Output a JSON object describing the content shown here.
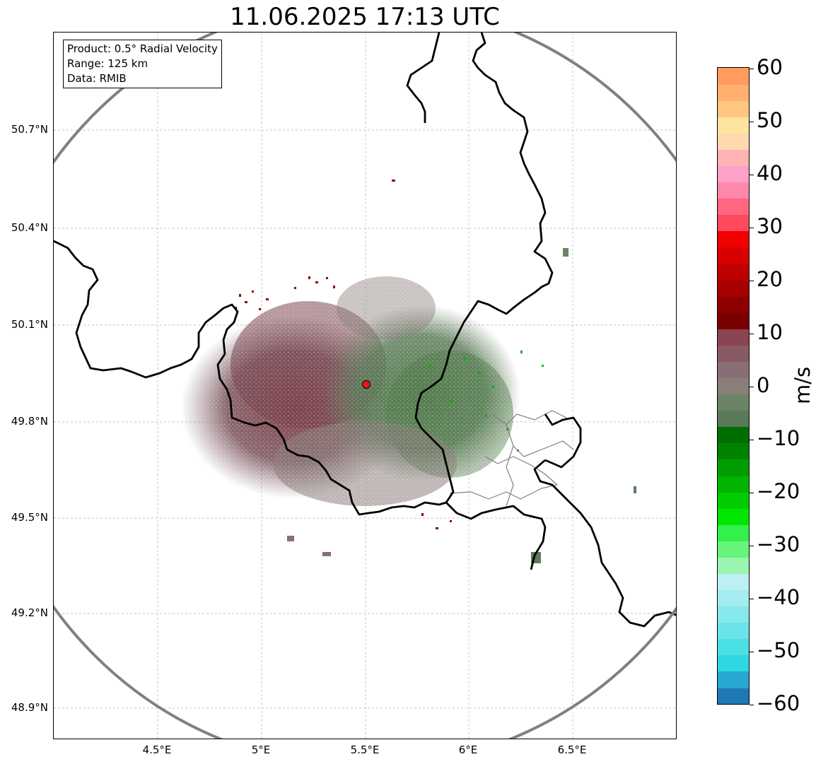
{
  "title": "11.06.2025 17:13 UTC",
  "info": {
    "product": "Product: 0.5° Radial Velocity",
    "range": "Range: 125 km",
    "data_source": "Data: RMIB"
  },
  "axes": {
    "lat_ticks": [
      "50.7°N",
      "50.4°N",
      "50.1°N",
      "49.8°N",
      "49.5°N",
      "49.2°N",
      "48.9°N"
    ],
    "lon_ticks": [
      "4.5°E",
      "5°E",
      "5.5°E",
      "6°E",
      "6.5°E"
    ]
  },
  "radar": {
    "site_color": "#e31a1c",
    "range_ring_color": "#808080"
  },
  "colorbar": {
    "label": "m/s",
    "ticks": [
      "60",
      "50",
      "40",
      "30",
      "20",
      "10",
      "0",
      "−10",
      "−20",
      "−30",
      "−40",
      "−50",
      "−60"
    ],
    "vmin": -60,
    "vmax": 60,
    "colors": [
      "#1f78b4",
      "#28a8d0",
      "#2ed8e0",
      "#4be0e3",
      "#6ae4e8",
      "#87e8ec",
      "#a3ecf0",
      "#bdf0f2",
      "#99f5b0",
      "#66f57a",
      "#33f04a",
      "#00e600",
      "#00cc00",
      "#00b400",
      "#009c00",
      "#008400",
      "#006e00",
      "#5a7a5a",
      "#6b8463",
      "#8a7e7a",
      "#8a6e76",
      "#8a5a64",
      "#8b4452",
      "#7a0000",
      "#8e0000",
      "#a60000",
      "#be0000",
      "#d80000",
      "#f00000",
      "#ff4a5e",
      "#ff6680",
      "#ff88aa",
      "#ffa0c8",
      "#ffb4b4",
      "#ffd8b0",
      "#ffe3a0",
      "#ffc680",
      "#ffb070",
      "#ff9c5e"
    ]
  },
  "colors": {
    "border": "#000000",
    "grid": "#b0b0b0",
    "inbound": "#5d7d5a",
    "outbound": "#7a5c63"
  }
}
